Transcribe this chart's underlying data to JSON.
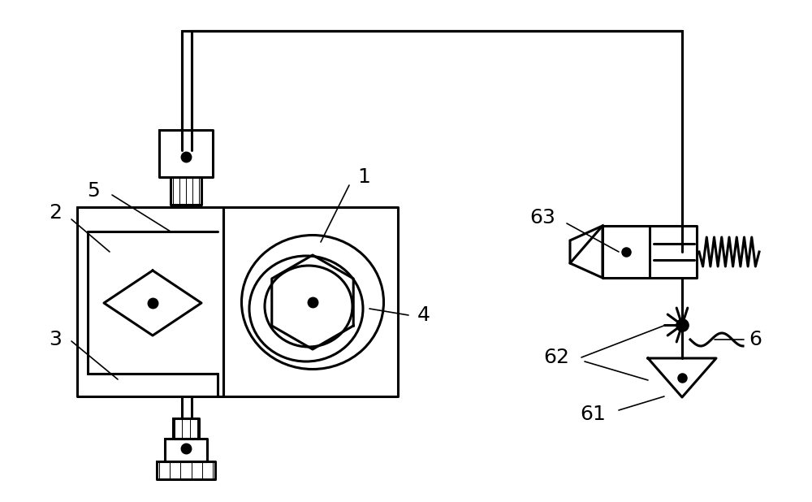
{
  "bg_color": "#ffffff",
  "line_color": "#000000",
  "lw": 2.2,
  "lw_thin": 1.2,
  "fs": 18
}
